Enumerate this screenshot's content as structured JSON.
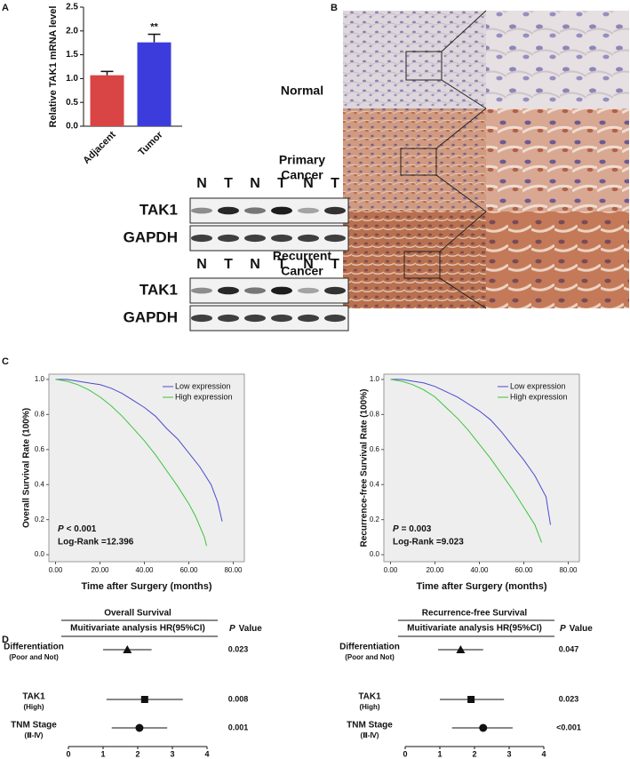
{
  "panel_labels": [
    "A",
    "B",
    "C",
    "D"
  ],
  "blots": [
    {
      "lanes": [
        "N",
        "T",
        "N",
        "T",
        "N",
        "T"
      ],
      "rows": [
        "TAK1",
        "GAPDH"
      ]
    },
    {
      "lanes": [
        "N",
        "T",
        "N",
        "T",
        "N",
        "T"
      ],
      "rows": [
        "TAK1",
        "GAPDH"
      ]
    }
  ],
  "ihc": {
    "rows": [
      [
        "Normal"
      ],
      [
        "Primary",
        "Cancer"
      ],
      [
        "Recurrent",
        "Cancer"
      ]
    ]
  },
  "chart_data": [
    {
      "type": "bar",
      "ylabel": "Relative TAK1 mRNA level",
      "categories": [
        "Adjacent",
        "Tumor"
      ],
      "values": [
        1.07,
        1.76
      ],
      "errors": [
        0.08,
        0.17
      ],
      "colors": [
        "#d94444",
        "#3c3cdc"
      ],
      "annotation": {
        "category": "Tumor",
        "text": "**"
      },
      "ylim": [
        0,
        2.5
      ],
      "yticks": [
        {
          "value": 0,
          "label": "0.0"
        },
        {
          "value": 0.5,
          "label": "0.5"
        },
        {
          "value": 1,
          "label": "1.0"
        },
        {
          "value": 1.5,
          "label": "1.5"
        },
        {
          "value": 2,
          "label": "2.0"
        },
        {
          "value": 2.5,
          "label": "2.5"
        }
      ]
    },
    {
      "type": "line",
      "xlabel": "Time after Surgery (months)",
      "ylabel": "Overall Survival Rate (100%)",
      "series": [
        {
          "name": "Low expression",
          "color": "#4a4ad0",
          "x": [
            0,
            5,
            10,
            15,
            20,
            25,
            30,
            35,
            40,
            45,
            50,
            55,
            60,
            65,
            70,
            73,
            75
          ],
          "values": [
            1,
            1,
            0.99,
            0.98,
            0.97,
            0.95,
            0.92,
            0.88,
            0.84,
            0.79,
            0.72,
            0.66,
            0.58,
            0.5,
            0.4,
            0.3,
            0.19
          ]
        },
        {
          "name": "High expression",
          "color": "#3cc43c",
          "x": [
            0,
            5,
            10,
            15,
            20,
            25,
            30,
            35,
            40,
            45,
            50,
            55,
            60,
            63,
            65,
            67,
            68
          ],
          "values": [
            1,
            0.99,
            0.97,
            0.94,
            0.9,
            0.85,
            0.79,
            0.72,
            0.65,
            0.57,
            0.48,
            0.39,
            0.29,
            0.22,
            0.16,
            0.1,
            0.05
          ]
        }
      ],
      "stats": {
        "p_symbol": "P",
        "p_text": "< 0.001",
        "log_rank": "Log-Rank =12.396"
      },
      "legend": "upper right",
      "xlim": [
        -3,
        85
      ],
      "ylim": [
        -0.04,
        1.03
      ],
      "xticks": [
        {
          "value": 0,
          "label": "0.00"
        },
        {
          "value": 20,
          "label": "20.00"
        },
        {
          "value": 40,
          "label": "40.00"
        },
        {
          "value": 60,
          "label": "60.00"
        },
        {
          "value": 80,
          "label": "80.00"
        }
      ],
      "yticks": [
        {
          "value": 0,
          "label": "0.0"
        },
        {
          "value": 0.2,
          "label": "0.2"
        },
        {
          "value": 0.4,
          "label": "0.4"
        },
        {
          "value": 0.6,
          "label": "0.6"
        },
        {
          "value": 0.8,
          "label": "0.8"
        },
        {
          "value": 1,
          "label": "1.0"
        }
      ]
    },
    {
      "type": "line",
      "xlabel": "Time after Surgery (months)",
      "ylabel": "Recurrence-free Survival Rate (100%)",
      "series": [
        {
          "name": "Low expression",
          "color": "#4a4ad0",
          "x": [
            0,
            5,
            10,
            15,
            20,
            25,
            30,
            35,
            40,
            45,
            50,
            55,
            60,
            65,
            70,
            72
          ],
          "values": [
            1,
            1,
            0.99,
            0.98,
            0.96,
            0.93,
            0.9,
            0.86,
            0.82,
            0.77,
            0.7,
            0.62,
            0.54,
            0.45,
            0.33,
            0.17
          ]
        },
        {
          "name": "High expression",
          "color": "#3cc43c",
          "x": [
            0,
            5,
            10,
            15,
            20,
            25,
            30,
            35,
            40,
            45,
            50,
            55,
            60,
            65,
            68
          ],
          "values": [
            1,
            0.99,
            0.97,
            0.94,
            0.9,
            0.84,
            0.78,
            0.71,
            0.63,
            0.55,
            0.46,
            0.37,
            0.27,
            0.17,
            0.07
          ]
        }
      ],
      "stats": {
        "p_symbol": "P",
        "p_text": "= 0.003",
        "log_rank": "Log-Rank =9.023"
      },
      "legend": "upper right",
      "xlim": [
        -3,
        85
      ],
      "ylim": [
        -0.04,
        1.03
      ],
      "xticks": [
        {
          "value": 0,
          "label": "0.00"
        },
        {
          "value": 20,
          "label": "20.00"
        },
        {
          "value": 40,
          "label": "40.00"
        },
        {
          "value": 60,
          "label": "60.00"
        },
        {
          "value": 80,
          "label": "80.00"
        }
      ],
      "yticks": [
        {
          "value": 0,
          "label": "0.0"
        },
        {
          "value": 0.2,
          "label": "0.2"
        },
        {
          "value": 0.4,
          "label": "0.4"
        },
        {
          "value": 0.6,
          "label": "0.6"
        },
        {
          "value": 0.8,
          "label": "0.8"
        },
        {
          "value": 1,
          "label": "1.0"
        }
      ]
    },
    {
      "type": "forest",
      "title": "Overall  Survival",
      "subtitle": "Muitivariate analysis HR(95%CI)",
      "p_header": {
        "symbol": "P",
        "text": "Value"
      },
      "categories": [
        "Differentiation",
        "TAK1",
        "TNM Stage"
      ],
      "sublabels": [
        "(Poor and Not)",
        "(High)",
        "(Ⅲ-Ⅳ)"
      ],
      "values": [
        1.7,
        2.2,
        2.05
      ],
      "lower": [
        1.0,
        1.1,
        1.25
      ],
      "upper": [
        2.4,
        3.3,
        2.85
      ],
      "markers": [
        "triangle",
        "square",
        "circle"
      ],
      "p_values": [
        "0.023",
        "0.008",
        "0.001"
      ],
      "xlim": [
        0,
        4
      ],
      "xticks": [
        0,
        1,
        2,
        3,
        4
      ]
    },
    {
      "type": "forest",
      "title": "Recurrence-free  Survival",
      "subtitle": "Muitivariate analysis HR(95%CI)",
      "p_header": {
        "symbol": "P",
        "text": "Value"
      },
      "categories": [
        "Differentiation",
        "TAK1",
        "TNM Stage"
      ],
      "sublabels": [
        "(Poor and Not)",
        "(High)",
        "(Ⅲ-Ⅳ)"
      ],
      "values": [
        1.6,
        1.9,
        2.25
      ],
      "lower": [
        0.95,
        1.0,
        1.35
      ],
      "upper": [
        2.25,
        2.85,
        3.1
      ],
      "markers": [
        "triangle",
        "square",
        "circle"
      ],
      "p_values": [
        "0.047",
        "0.023",
        "<0.001"
      ],
      "xlim": [
        0,
        4
      ],
      "xticks": [
        0,
        1,
        2,
        3,
        4
      ]
    }
  ]
}
